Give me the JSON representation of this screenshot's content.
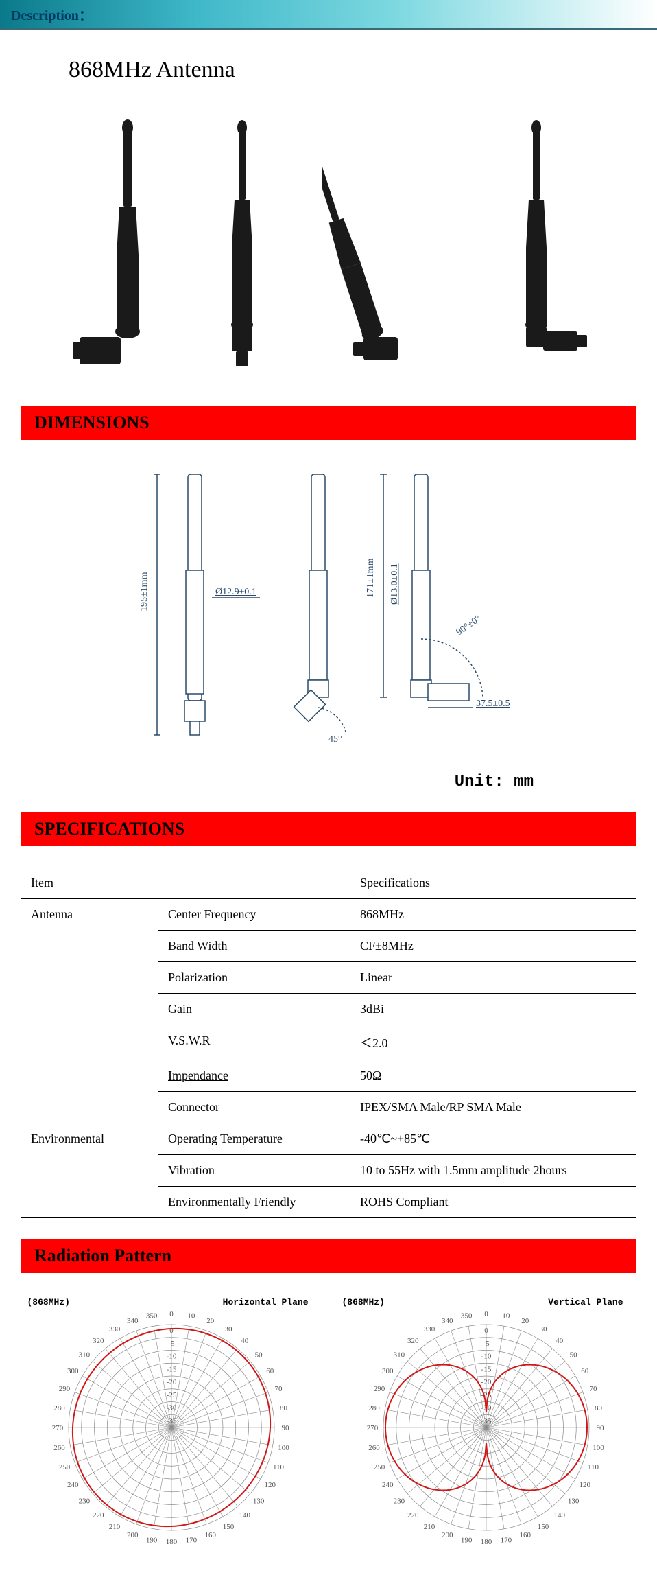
{
  "header": {
    "description": "Description："
  },
  "title": "868MHz Antenna",
  "sections": {
    "dimensions": "DIMENSIONS",
    "specifications": "SPECIFICATIONS",
    "radiation": "Radiation Pattern"
  },
  "dimensions": {
    "unit_label": "Unit: mm",
    "height_full": "195±1mm",
    "height_body": "171±1mm",
    "dia1": "Ø12.9±0.1",
    "dia2": "Ø13.0±0.1",
    "angle45": "45°",
    "angle90": "90°±0°",
    "base": "37.5±0.5"
  },
  "spec_table": {
    "h_item": "Item",
    "h_spec": "Specifications",
    "g_antenna": "Antenna",
    "g_env": "Environmental",
    "rows": [
      {
        "label": "Center Frequency",
        "value": "868MHz"
      },
      {
        "label": "Band Width",
        "value": "CF±8MHz"
      },
      {
        "label": "Polarization",
        "value": "Linear"
      },
      {
        "label": "Gain",
        "value": "3dBi"
      },
      {
        "label": "V.S.W.R",
        "value": "＜2.0"
      },
      {
        "label": "Impendance",
        "value": "50Ω"
      },
      {
        "label": "Connector",
        "value": "IPEX/SMA Male/RP SMA Male"
      },
      {
        "label": "Operating Temperature",
        "value": "-40℃~+85℃"
      },
      {
        "label": "Vibration",
        "value": "10 to 55Hz with 1.5mm amplitude 2hours"
      },
      {
        "label": "Environmentally Friendly",
        "value": "ROHS Compliant"
      }
    ]
  },
  "radiation": {
    "freq": "(868MHz)",
    "hplane": "Horizontal Plane",
    "vplane": "Vertical Plane",
    "angle_ticks": [
      0,
      10,
      20,
      30,
      40,
      50,
      60,
      70,
      80,
      90,
      100,
      110,
      120,
      130,
      140,
      150,
      160,
      170,
      180,
      190,
      200,
      210,
      220,
      230,
      240,
      250,
      260,
      270,
      280,
      290,
      300,
      310,
      320,
      330,
      340,
      350
    ],
    "radial_ticks": [
      "0",
      "-5",
      "-10",
      "-15",
      "-20",
      "-25",
      "-30",
      "-35"
    ],
    "colors": {
      "grid": "#8a8a8a",
      "trace": "#d01818",
      "text": "#555"
    }
  },
  "antenna_color": "#1a1a1a"
}
